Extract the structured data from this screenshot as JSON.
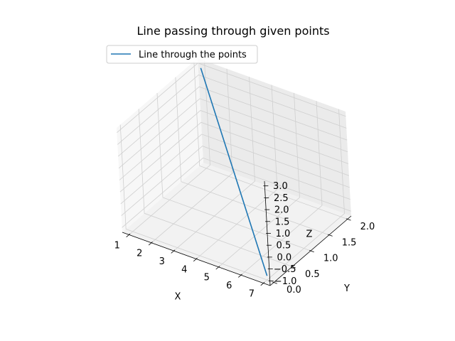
{
  "chart_data": {
    "type": "line",
    "projection": "3d",
    "title": "Line passing through given points",
    "xlabel": "X",
    "ylabel": "Y",
    "zlabel": "Z",
    "xlim": [
      0.7,
      7.3
    ],
    "ylim": [
      -0.1,
      2.1
    ],
    "zlim": [
      -1.2,
      3.2
    ],
    "x_ticks": [
      1,
      2,
      3,
      4,
      5,
      6,
      7
    ],
    "x_tick_labels": [
      "1",
      "2",
      "3",
      "4",
      "5",
      "6",
      "7"
    ],
    "y_ticks": [
      0.0,
      0.5,
      1.0,
      1.5,
      2.0
    ],
    "y_tick_labels": [
      "0.0",
      "0.5",
      "1.0",
      "1.5",
      "2.0"
    ],
    "z_ticks": [
      -1.0,
      -0.5,
      0.0,
      0.5,
      1.0,
      1.5,
      2.0,
      2.5,
      3.0
    ],
    "z_tick_labels": [
      "−1.0",
      "−0.5",
      "0.0",
      "0.5",
      "1.0",
      "1.5",
      "2.0",
      "2.5",
      "3.0"
    ],
    "grid": true,
    "legend_position": "upper-left",
    "series": [
      {
        "name": "Line through the points",
        "color": "#1f77b4",
        "x": [
          1,
          7
        ],
        "y": [
          2,
          0
        ],
        "z": [
          3,
          -1
        ]
      }
    ]
  }
}
